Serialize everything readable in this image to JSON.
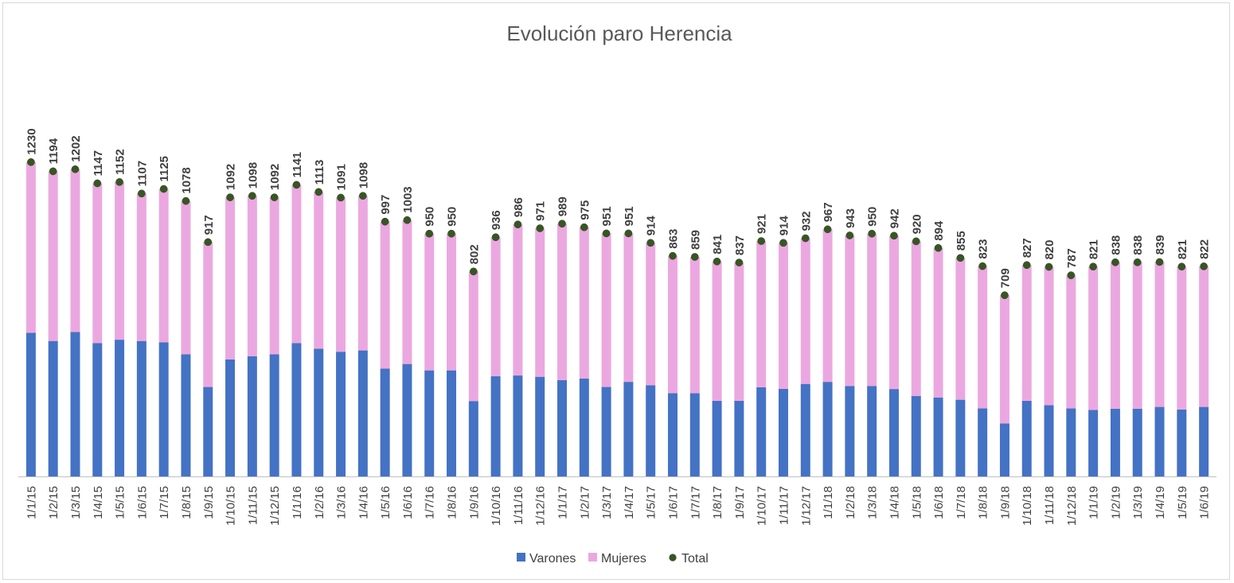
{
  "chart_data": {
    "type": "bar",
    "stacked": true,
    "title": "Evolución paro Herencia",
    "xlabel": "",
    "ylabel": "",
    "ylim": [
      0,
      1300
    ],
    "grid": false,
    "legend_position": "bottom",
    "categories": [
      "1/1/15",
      "1/2/15",
      "1/3/15",
      "1/4/15",
      "1/5/15",
      "1/6/15",
      "1/7/15",
      "1/8/15",
      "1/9/15",
      "1/10/15",
      "1/11/15",
      "1/12/15",
      "1/1/16",
      "1/2/16",
      "1/3/16",
      "1/4/16",
      "1/5/16",
      "1/6/16",
      "1/7/16",
      "1/8/16",
      "1/9/16",
      "1/10/16",
      "1/11/16",
      "1/12/16",
      "1/1/17",
      "1/2/17",
      "1/3/17",
      "1/4/17",
      "1/5/17",
      "1/6/17",
      "1/7/17",
      "1/8/17",
      "1/9/17",
      "1/10/17",
      "1/11/17",
      "1/12/17",
      "1/1/18",
      "1/2/18",
      "1/3/18",
      "1/4/18",
      "1/5/18",
      "1/6/18",
      "1/7/18",
      "1/8/18",
      "1/9/18",
      "1/10/18",
      "1/11/18",
      "1/12/18",
      "1/1/19",
      "1/2/19",
      "1/3/19",
      "1/4/19",
      "1/5/19",
      "1/6/19"
    ],
    "series": [
      {
        "name": "Varones",
        "type": "bar",
        "color": "#4472c4",
        "values": [
          562,
          530,
          565,
          522,
          535,
          530,
          525,
          478,
          350,
          458,
          470,
          478,
          522,
          500,
          488,
          493,
          422,
          440,
          415,
          415,
          295,
          392,
          395,
          390,
          377,
          383,
          350,
          370,
          357,
          326,
          326,
          296,
          296,
          349,
          343,
          362,
          370,
          354,
          354,
          342,
          315,
          309,
          300,
          266,
          207,
          296,
          279,
          266,
          260,
          265,
          265,
          272,
          262,
          272
        ]
      },
      {
        "name": "Mujeres",
        "type": "bar",
        "color": "#eba8e0",
        "values": [
          668,
          664,
          637,
          625,
          617,
          577,
          600,
          600,
          567,
          634,
          628,
          614,
          619,
          613,
          603,
          605,
          575,
          563,
          535,
          535,
          507,
          544,
          591,
          581,
          612,
          592,
          601,
          581,
          557,
          537,
          533,
          545,
          541,
          572,
          571,
          570,
          597,
          589,
          596,
          600,
          605,
          585,
          555,
          557,
          502,
          531,
          541,
          521,
          561,
          573,
          573,
          567,
          559,
          550
        ]
      },
      {
        "name": "Total",
        "type": "scatter",
        "color": "#375623",
        "values": [
          1230,
          1194,
          1202,
          1147,
          1152,
          1107,
          1125,
          1078,
          917,
          1092,
          1098,
          1092,
          1141,
          1113,
          1091,
          1098,
          997,
          1003,
          950,
          950,
          802,
          936,
          986,
          971,
          989,
          975,
          951,
          951,
          914,
          863,
          859,
          841,
          837,
          921,
          914,
          932,
          967,
          943,
          950,
          942,
          920,
          894,
          855,
          823,
          709,
          827,
          820,
          787,
          821,
          838,
          838,
          839,
          821,
          822
        ]
      }
    ]
  }
}
